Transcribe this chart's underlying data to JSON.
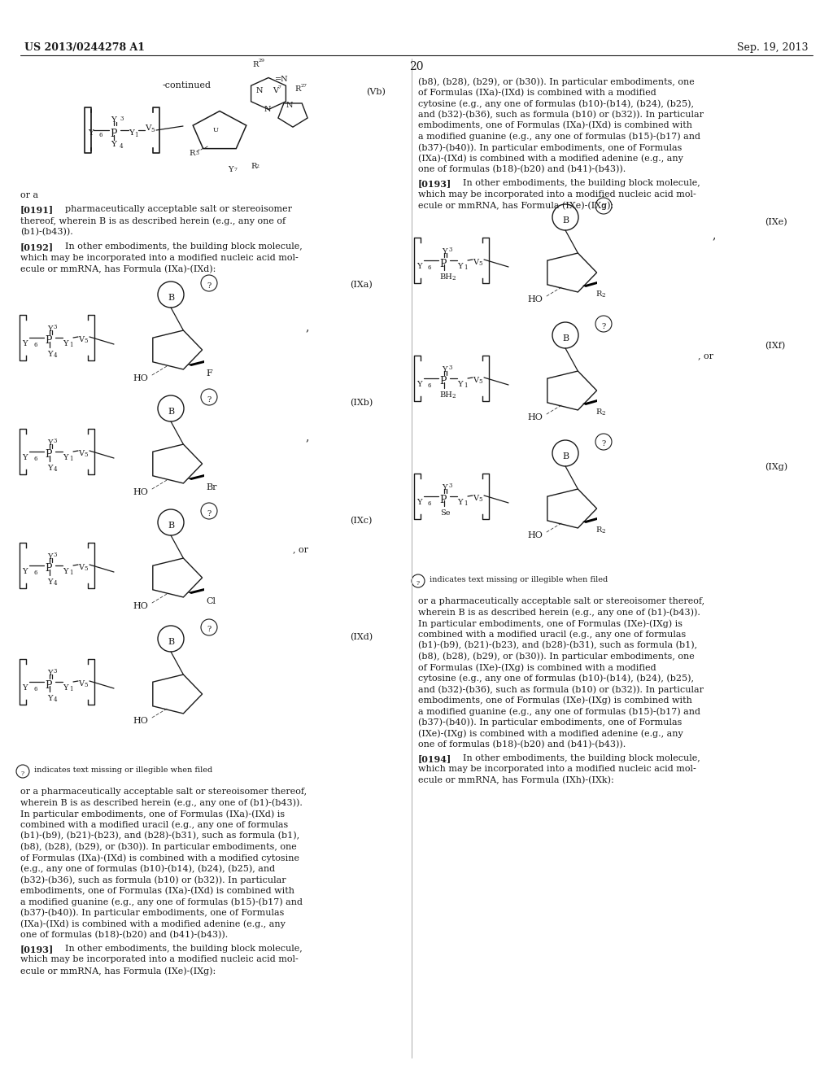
{
  "bg_color": "#ffffff",
  "page_width": 10.24,
  "page_height": 13.2,
  "header_left": "US 2013/0244278 A1",
  "header_right": "Sep. 19, 2013",
  "page_number": "20",
  "text_color": "#1a1a1a",
  "font_family": "DejaVu Serif"
}
